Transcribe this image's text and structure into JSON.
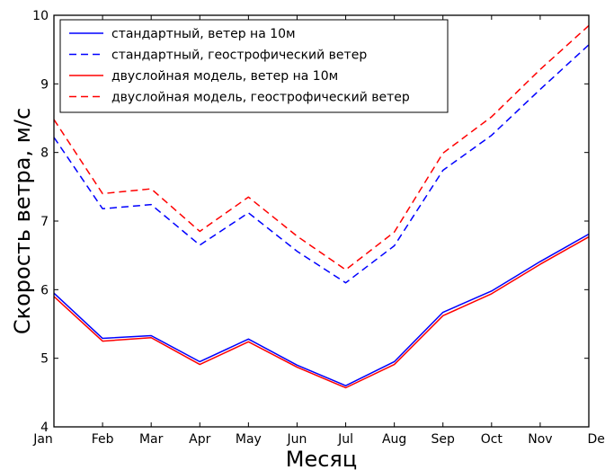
{
  "chart_data": {
    "type": "line",
    "xlabel": "Месяц",
    "ylabel": "Скорость ветра, м/с",
    "categories": [
      "Jan",
      "Feb",
      "Mar",
      "Apr",
      "May",
      "Jun",
      "Jul",
      "Aug",
      "Sep",
      "Oct",
      "Nov",
      "Dec"
    ],
    "ylim": [
      4,
      10
    ],
    "yticks": [
      "4",
      "5",
      "6",
      "7",
      "8",
      "9",
      "10"
    ],
    "grid": false,
    "legend_position": "top-left",
    "series": [
      {
        "name": "стандартный, ветер на 10м",
        "color": "#0000ff",
        "style": "solid",
        "values": [
          5.95,
          5.29,
          5.33,
          4.95,
          5.28,
          4.9,
          4.6,
          4.95,
          5.67,
          5.98,
          6.41,
          6.81
        ]
      },
      {
        "name": "стандартный, геострофический ветер",
        "color": "#0000ff",
        "style": "dashed",
        "values": [
          8.22,
          7.18,
          7.24,
          6.65,
          7.12,
          6.56,
          6.1,
          6.64,
          7.74,
          8.25,
          8.92,
          9.57
        ]
      },
      {
        "name": "двуслойная модель, ветер на 10м",
        "color": "#ff0000",
        "style": "solid",
        "values": [
          5.9,
          5.25,
          5.3,
          4.91,
          5.24,
          4.87,
          4.57,
          4.91,
          5.62,
          5.94,
          6.37,
          6.77
        ]
      },
      {
        "name": "двуслойная модель, геострофический ветер",
        "color": "#ff0000",
        "style": "dashed",
        "values": [
          8.48,
          7.4,
          7.47,
          6.85,
          7.35,
          6.78,
          6.29,
          6.84,
          7.99,
          8.52,
          9.21,
          9.85
        ]
      }
    ]
  }
}
